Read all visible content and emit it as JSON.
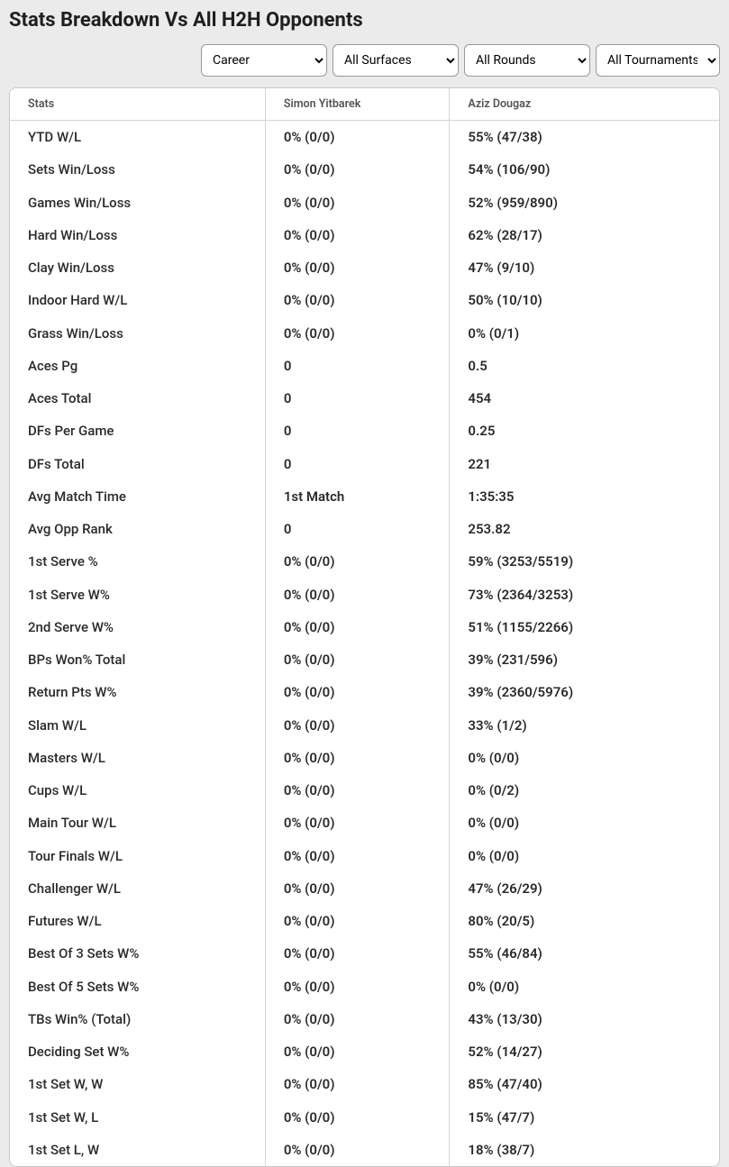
{
  "title": "Stats Breakdown Vs All H2H Opponents",
  "filters": {
    "period": {
      "selected": "Career"
    },
    "surface": {
      "selected": "All Surfaces"
    },
    "round": {
      "selected": "All Rounds"
    },
    "tournament": {
      "selected": "All Tournaments"
    }
  },
  "table": {
    "columns": {
      "stats": "Stats",
      "player1": "Simon Yitbarek",
      "player2": "Aziz Dougaz"
    },
    "rows": [
      {
        "stat": "YTD W/L",
        "p1": "0% (0/0)",
        "p2": "55% (47/38)"
      },
      {
        "stat": "Sets Win/Loss",
        "p1": "0% (0/0)",
        "p2": "54% (106/90)"
      },
      {
        "stat": "Games Win/Loss",
        "p1": "0% (0/0)",
        "p2": "52% (959/890)"
      },
      {
        "stat": "Hard Win/Loss",
        "p1": "0% (0/0)",
        "p2": "62% (28/17)"
      },
      {
        "stat": "Clay Win/Loss",
        "p1": "0% (0/0)",
        "p2": "47% (9/10)"
      },
      {
        "stat": "Indoor Hard W/L",
        "p1": "0% (0/0)",
        "p2": "50% (10/10)"
      },
      {
        "stat": "Grass Win/Loss",
        "p1": "0% (0/0)",
        "p2": "0% (0/1)"
      },
      {
        "stat": "Aces Pg",
        "p1": "0",
        "p2": "0.5"
      },
      {
        "stat": "Aces Total",
        "p1": "0",
        "p2": "454"
      },
      {
        "stat": "DFs Per Game",
        "p1": "0",
        "p2": "0.25"
      },
      {
        "stat": "DFs Total",
        "p1": "0",
        "p2": "221"
      },
      {
        "stat": "Avg Match Time",
        "p1": "1st Match",
        "p2": "1:35:35"
      },
      {
        "stat": "Avg Opp Rank",
        "p1": "0",
        "p2": "253.82"
      },
      {
        "stat": "1st Serve %",
        "p1": "0% (0/0)",
        "p2": "59% (3253/5519)"
      },
      {
        "stat": "1st Serve W%",
        "p1": "0% (0/0)",
        "p2": "73% (2364/3253)"
      },
      {
        "stat": "2nd Serve W%",
        "p1": "0% (0/0)",
        "p2": "51% (1155/2266)"
      },
      {
        "stat": "BPs Won% Total",
        "p1": "0% (0/0)",
        "p2": "39% (231/596)"
      },
      {
        "stat": "Return Pts W%",
        "p1": "0% (0/0)",
        "p2": "39% (2360/5976)"
      },
      {
        "stat": "Slam W/L",
        "p1": "0% (0/0)",
        "p2": "33% (1/2)"
      },
      {
        "stat": "Masters W/L",
        "p1": "0% (0/0)",
        "p2": "0% (0/0)"
      },
      {
        "stat": "Cups W/L",
        "p1": "0% (0/0)",
        "p2": "0% (0/2)"
      },
      {
        "stat": "Main Tour W/L",
        "p1": "0% (0/0)",
        "p2": "0% (0/0)"
      },
      {
        "stat": "Tour Finals W/L",
        "p1": "0% (0/0)",
        "p2": "0% (0/0)"
      },
      {
        "stat": "Challenger W/L",
        "p1": "0% (0/0)",
        "p2": "47% (26/29)"
      },
      {
        "stat": "Futures W/L",
        "p1": "0% (0/0)",
        "p2": "80% (20/5)"
      },
      {
        "stat": "Best Of 3 Sets W%",
        "p1": "0% (0/0)",
        "p2": "55% (46/84)"
      },
      {
        "stat": "Best Of 5 Sets W%",
        "p1": "0% (0/0)",
        "p2": "0% (0/0)"
      },
      {
        "stat": "TBs Win% (Total)",
        "p1": "0% (0/0)",
        "p2": "43% (13/30)"
      },
      {
        "stat": "Deciding Set W%",
        "p1": "0% (0/0)",
        "p2": "52% (14/27)"
      },
      {
        "stat": "1st Set W, W",
        "p1": "0% (0/0)",
        "p2": "85% (47/40)"
      },
      {
        "stat": "1st Set W, L",
        "p1": "0% (0/0)",
        "p2": "15% (47/7)"
      },
      {
        "stat": "1st Set L, W",
        "p1": "0% (0/0)",
        "p2": "18% (38/7)"
      }
    ]
  }
}
